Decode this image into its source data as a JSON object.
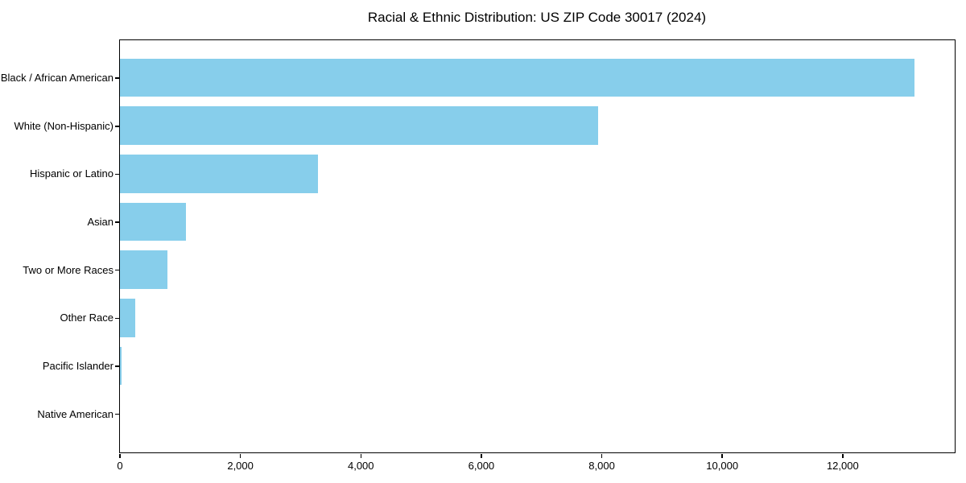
{
  "chart_data": {
    "type": "bar",
    "orientation": "horizontal",
    "title": "Racial & Ethnic Distribution: US ZIP Code 30017 (2024)",
    "categories": [
      "Black / African American",
      "White (Non-Hispanic)",
      "Hispanic or Latino",
      "Asian",
      "Two or More Races",
      "Other Race",
      "Pacific Islander",
      "Native American"
    ],
    "values": [
      13200,
      7940,
      3290,
      1100,
      795,
      260,
      35,
      0
    ],
    "x_ticks": [
      0,
      2000,
      4000,
      6000,
      8000,
      10000,
      12000
    ],
    "x_tick_labels": [
      "0",
      "2,000",
      "4,000",
      "6,000",
      "8,000",
      "10,000",
      "12,000"
    ],
    "xlabel": "",
    "ylabel": "",
    "xlim": [
      0,
      13860
    ],
    "grid": false,
    "legend": null,
    "colors": {
      "bar": "#87CEEB",
      "text": "#000000",
      "frame": "#000000",
      "background": "#ffffff"
    }
  }
}
